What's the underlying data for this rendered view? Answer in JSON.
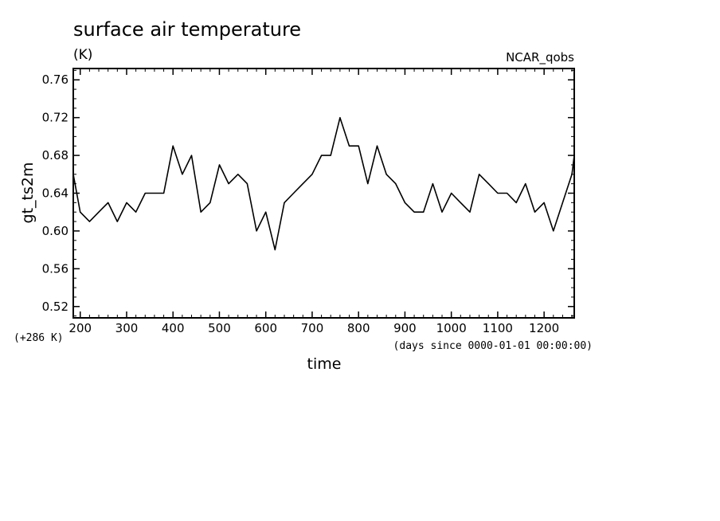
{
  "chart_data": {
    "type": "line",
    "title": "surface air temperature",
    "units": "(K)",
    "source_label": "NCAR_qobs",
    "xlabel": "time",
    "x_units": "(days since 0000-01-01 00:00:00)",
    "ylabel": "gt_ts2m",
    "y_offset_label": "(+286 K)",
    "xlim": [
      185,
      1265
    ],
    "ylim": [
      0.508,
      0.772
    ],
    "xticks": [
      200,
      300,
      400,
      500,
      600,
      700,
      800,
      900,
      1000,
      1100,
      1200
    ],
    "xtick_labels": [
      "200",
      "300",
      "400",
      "500",
      "600",
      "700",
      "800",
      "900",
      "1000",
      "1100",
      "1200"
    ],
    "yticks": [
      0.52,
      0.56,
      0.6,
      0.64,
      0.68,
      0.72,
      0.76
    ],
    "ytick_labels": [
      "0.52",
      "0.56",
      "0.60",
      "0.64",
      "0.68",
      "0.72",
      "0.76"
    ],
    "grid": false,
    "line_color": "#000000",
    "series": [
      {
        "x": [
          185,
          200,
          220,
          240,
          260,
          280,
          300,
          320,
          340,
          360,
          380,
          400,
          420,
          440,
          460,
          480,
          500,
          520,
          540,
          560,
          580,
          600,
          620,
          640,
          660,
          680,
          700,
          720,
          740,
          760,
          780,
          800,
          820,
          840,
          860,
          880,
          900,
          920,
          940,
          960,
          980,
          1000,
          1020,
          1040,
          1060,
          1080,
          1100,
          1120,
          1140,
          1160,
          1180,
          1200,
          1220,
          1240,
          1260,
          1265
        ],
        "y": [
          0.66,
          0.62,
          0.61,
          0.62,
          0.63,
          0.61,
          0.63,
          0.62,
          0.64,
          0.64,
          0.64,
          0.69,
          0.66,
          0.68,
          0.62,
          0.63,
          0.67,
          0.65,
          0.66,
          0.65,
          0.6,
          0.62,
          0.58,
          0.63,
          0.64,
          0.65,
          0.66,
          0.68,
          0.68,
          0.72,
          0.69,
          0.69,
          0.65,
          0.69,
          0.66,
          0.65,
          0.63,
          0.62,
          0.62,
          0.65,
          0.62,
          0.64,
          0.63,
          0.62,
          0.66,
          0.65,
          0.64,
          0.64,
          0.63,
          0.65,
          0.62,
          0.63,
          0.6,
          0.63,
          0.66,
          0.68
        ]
      }
    ]
  }
}
